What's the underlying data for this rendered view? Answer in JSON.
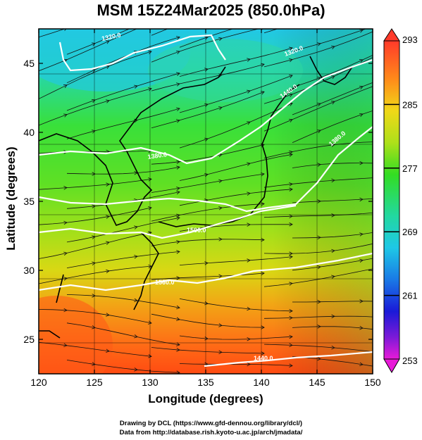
{
  "title": "MSM 15Z24Mar2025 (850.0hPa)",
  "chart_data": {
    "type": "map",
    "title": "MSM 15Z24Mar2025 (850.0hPa)",
    "xlabel": "Longitude (degrees)",
    "ylabel": "Latitude  (degrees)",
    "xlim": [
      120,
      150
    ],
    "ylim": [
      22.5,
      47.5
    ],
    "xticks": [
      "120",
      "125",
      "130",
      "135",
      "140",
      "145",
      "150"
    ],
    "yticks": [
      "25",
      "30",
      "35",
      "40",
      "45"
    ],
    "colorbar": {
      "min": 253,
      "max": 293,
      "tick_labels": [
        "293",
        "285",
        "277",
        "269",
        "261",
        "253"
      ]
    },
    "contour_labels": [
      "1320.0",
      "1380.0",
      "1440.0",
      "1500.0",
      "1560.0",
      "1320.0",
      "1380.0",
      "1440.0",
      "1500.0"
    ],
    "color_field": "Temperature (K)",
    "vector_field": "Wind streamlines"
  },
  "credits": {
    "line1": "Drawing by DCL (https://www.gfd-dennou.org/library/dcl/)",
    "line2": "Data from http://database.rish.kyoto-u.ac.jp/arch/jmadata/"
  },
  "colors": {
    "warm": "#ff5a1a",
    "green": "#33dd22",
    "cyan": "#20c8e0",
    "contour": "#ffffff"
  }
}
